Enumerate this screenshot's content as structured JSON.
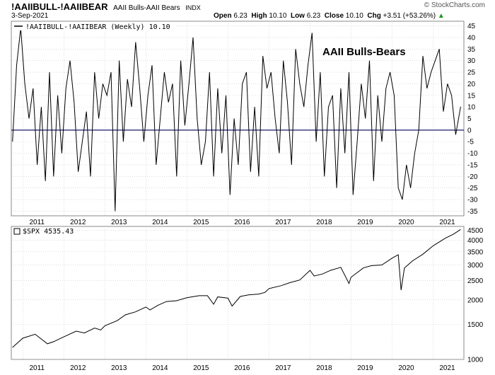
{
  "header": {
    "symbol": "!AAIIBULL-!AAIIBEAR",
    "description": "AAII Bulls-AAII Bears",
    "exchange": "INDX",
    "date": "3-Sep-2021",
    "logo": "© StockCharts.com",
    "open_label": "Open",
    "open": "6.23",
    "high_label": "High",
    "high": "10.10",
    "low_label": "Low",
    "low": "6.23",
    "close_label": "Close",
    "close": "10.10",
    "chg_label": "Chg",
    "chg": "+3.51 (+53.26%)",
    "chg_icon": "up-triangle-icon"
  },
  "colors": {
    "baseline": "#1a1a6e",
    "line": "#000000",
    "up": "#1a9a1a",
    "grid": "#c8c8c8"
  },
  "chart_data": [
    {
      "type": "line",
      "legend": "!AAIIBULL-!AAIIBEAR (Weekly) 10.10",
      "annotation": "AAII Bulls-Bears",
      "x_tick_labels": [
        "2011",
        "2012",
        "2013",
        "2014",
        "2015",
        "2016",
        "2017",
        "2018",
        "2019",
        "2020",
        "2021"
      ],
      "y_tick_labels": [
        "45",
        "40",
        "35",
        "30",
        "25",
        "20",
        "15",
        "10",
        "5",
        "0",
        "-5",
        "-10",
        "-15",
        "-20",
        "-25",
        "-30",
        "-35"
      ],
      "ylim": [
        -37,
        47
      ],
      "xlim": [
        2010.72,
        2021.75
      ],
      "grid": true,
      "baseline": 0,
      "x": [
        2010.75,
        2010.85,
        2010.95,
        2011.05,
        2011.15,
        2011.25,
        2011.35,
        2011.45,
        2011.55,
        2011.65,
        2011.75,
        2011.85,
        2011.95,
        2012.05,
        2012.15,
        2012.25,
        2012.35,
        2012.45,
        2012.55,
        2012.65,
        2012.75,
        2012.85,
        2012.95,
        2013.05,
        2013.15,
        2013.25,
        2013.35,
        2013.45,
        2013.55,
        2013.65,
        2013.75,
        2013.85,
        2013.95,
        2014.05,
        2014.15,
        2014.25,
        2014.35,
        2014.45,
        2014.55,
        2014.65,
        2014.75,
        2014.85,
        2014.95,
        2015.05,
        2015.15,
        2015.25,
        2015.35,
        2015.45,
        2015.55,
        2015.65,
        2015.75,
        2015.85,
        2015.95,
        2016.05,
        2016.15,
        2016.25,
        2016.35,
        2016.45,
        2016.55,
        2016.65,
        2016.75,
        2016.85,
        2016.95,
        2017.05,
        2017.15,
        2017.25,
        2017.35,
        2017.45,
        2017.55,
        2017.65,
        2017.75,
        2017.85,
        2017.95,
        2018.05,
        2018.15,
        2018.25,
        2018.35,
        2018.45,
        2018.55,
        2018.65,
        2018.75,
        2018.85,
        2018.95,
        2019.05,
        2019.15,
        2019.25,
        2019.35,
        2019.45,
        2019.55,
        2019.65,
        2019.75,
        2019.85,
        2019.95,
        2020.05,
        2020.15,
        2020.25,
        2020.35,
        2020.45,
        2020.55,
        2020.65,
        2020.75,
        2020.85,
        2020.95,
        2021.05,
        2021.15,
        2021.25,
        2021.35,
        2021.45,
        2021.55,
        2021.67
      ],
      "values": [
        -5,
        28,
        44,
        20,
        5,
        18,
        -15,
        10,
        -22,
        25,
        -20,
        15,
        -10,
        18,
        30,
        12,
        -18,
        -5,
        8,
        -20,
        25,
        5,
        20,
        15,
        25,
        -35,
        30,
        -5,
        22,
        10,
        38,
        18,
        -5,
        15,
        28,
        -15,
        5,
        25,
        12,
        20,
        -20,
        30,
        2,
        20,
        40,
        5,
        -15,
        -5,
        25,
        -20,
        18,
        -10,
        15,
        -28,
        5,
        -15,
        20,
        25,
        -18,
        10,
        -20,
        32,
        18,
        25,
        5,
        -10,
        30,
        12,
        -15,
        35,
        20,
        10,
        28,
        42,
        -5,
        25,
        -20,
        10,
        15,
        -25,
        18,
        -10,
        25,
        -28,
        -5,
        20,
        5,
        30,
        -22,
        15,
        -5,
        18,
        25,
        15,
        -25,
        -30,
        -15,
        -25,
        -10,
        0,
        32,
        18,
        25,
        30,
        35,
        8,
        20,
        15,
        -2,
        10.1
      ]
    },
    {
      "type": "line",
      "legend": "$SPX 4535.43",
      "y_tick_labels": [
        "4500",
        "4000",
        "3500",
        "3000",
        "2500",
        "2000",
        "1500",
        "1000"
      ],
      "y_scale": "log",
      "ylim": [
        1000,
        4700
      ],
      "xlim": [
        2010.72,
        2021.75
      ],
      "grid": true,
      "x": [
        2010.75,
        2011.0,
        2011.3,
        2011.6,
        2011.75,
        2012.0,
        2012.3,
        2012.5,
        2012.75,
        2012.9,
        2013.0,
        2013.3,
        2013.5,
        2013.75,
        2014.0,
        2014.1,
        2014.3,
        2014.5,
        2014.75,
        2015.0,
        2015.3,
        2015.5,
        2015.65,
        2015.75,
        2016.0,
        2016.1,
        2016.3,
        2016.5,
        2016.75,
        2016.9,
        2017.0,
        2017.3,
        2017.5,
        2017.75,
        2018.0,
        2018.1,
        2018.3,
        2018.5,
        2018.75,
        2018.95,
        2019.0,
        2019.3,
        2019.5,
        2019.75,
        2020.0,
        2020.15,
        2020.22,
        2020.3,
        2020.5,
        2020.75,
        2021.0,
        2021.3,
        2021.5,
        2021.67
      ],
      "values": [
        1150,
        1280,
        1340,
        1200,
        1230,
        1300,
        1390,
        1360,
        1440,
        1410,
        1480,
        1570,
        1680,
        1740,
        1840,
        1780,
        1880,
        1960,
        1980,
        2050,
        2100,
        2100,
        1900,
        2070,
        2040,
        1860,
        2080,
        2120,
        2140,
        2180,
        2280,
        2360,
        2440,
        2520,
        2820,
        2640,
        2700,
        2820,
        2920,
        2420,
        2600,
        2900,
        2980,
        3000,
        3250,
        3380,
        2240,
        2900,
        3150,
        3400,
        3750,
        4100,
        4300,
        4535
      ]
    }
  ]
}
